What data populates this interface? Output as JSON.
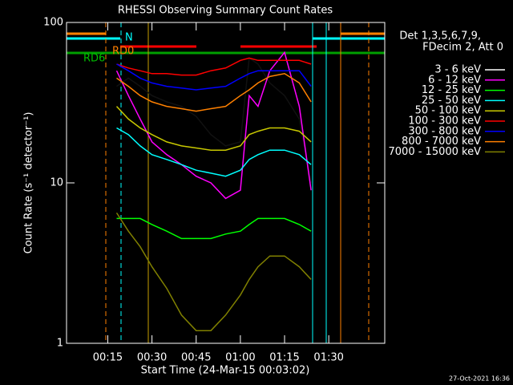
{
  "chart_data": {
    "type": "line",
    "title": "RHESSI Observing Summary Count Rates",
    "x_label": "Start Time (24-Mar-15 00:03:02)",
    "y_label": "Count Rate (s⁻¹ detector⁻¹)",
    "legend_title": [
      "Det 1,3,5,6,7,9,",
      "FDecim 2, Att 0"
    ],
    "footer": "27-Oct-2021 16:36",
    "log_y": true,
    "xlim": [
      1,
      109
    ],
    "ylim": [
      1,
      100
    ],
    "yticks": [
      1,
      10,
      100
    ],
    "xticks": [
      {
        "value": 15,
        "label": "00:15"
      },
      {
        "value": 30,
        "label": "00:30"
      },
      {
        "value": 45,
        "label": "00:45"
      },
      {
        "value": 60,
        "label": "01:00"
      },
      {
        "value": 75,
        "label": "01:15"
      },
      {
        "value": 90,
        "label": "01:30"
      }
    ],
    "annotations": [
      {
        "text": "N",
        "color": "#00ffff"
      },
      {
        "text": "RD0",
        "color": "#ff8000"
      },
      {
        "text": "RD6",
        "color": "#00c000"
      }
    ],
    "x": [
      18,
      22,
      26,
      30,
      35,
      40,
      45,
      50,
      55,
      60,
      63,
      66,
      70,
      75,
      80,
      84
    ],
    "series": [
      {
        "name": "3 - 6 keV",
        "color": "#000000",
        "values": [
          40,
          45,
          40,
          35,
          32,
          30,
          26,
          20,
          17,
          18,
          60,
          55,
          42,
          35,
          25,
          10
        ]
      },
      {
        "name": "6 - 12 keV",
        "color": "#ff00ff",
        "values": [
          50,
          35,
          25,
          18,
          15,
          13,
          11,
          10,
          8,
          9,
          35,
          30,
          50,
          65,
          30,
          9
        ]
      },
      {
        "name": "12 - 25 keV",
        "color": "#00ff00",
        "values": [
          6,
          6,
          6,
          5.5,
          5,
          4.5,
          4.5,
          4.5,
          4.8,
          5,
          5.5,
          6,
          6,
          6,
          5.5,
          5
        ]
      },
      {
        "name": "25 - 50 keV",
        "color": "#00ffff",
        "values": [
          22,
          20,
          17,
          15,
          14,
          13,
          12,
          11.5,
          11,
          12,
          14,
          15,
          16,
          16,
          15,
          13
        ]
      },
      {
        "name": "50 - 100 keV",
        "color": "#c8c800",
        "values": [
          30,
          25,
          22,
          20,
          18,
          17,
          16.5,
          16,
          16,
          17,
          20,
          21,
          22,
          22,
          21,
          18
        ]
      },
      {
        "name": "100 - 300 keV",
        "color": "#ff0000",
        "values": [
          55,
          52,
          50,
          48,
          48,
          47,
          47,
          50,
          52,
          58,
          60,
          58,
          58,
          58,
          58,
          55
        ]
      },
      {
        "name": "300 - 800 keV",
        "color": "#0000ff",
        "values": [
          55,
          50,
          45,
          42,
          40,
          39,
          38,
          39,
          40,
          45,
          48,
          50,
          50,
          50,
          50,
          40
        ]
      },
      {
        "name": "800 - 7000 keV",
        "color": "#ff8000",
        "values": [
          45,
          40,
          35,
          32,
          30,
          29,
          28,
          29,
          30,
          35,
          38,
          42,
          46,
          48,
          42,
          32
        ]
      },
      {
        "name": "7000 - 15000 keV",
        "color": "#808000",
        "values": [
          6.5,
          5,
          4,
          3,
          2.2,
          1.5,
          1.2,
          1.2,
          1.5,
          2,
          2.5,
          3,
          3.5,
          3.5,
          3,
          2.5
        ]
      }
    ]
  }
}
